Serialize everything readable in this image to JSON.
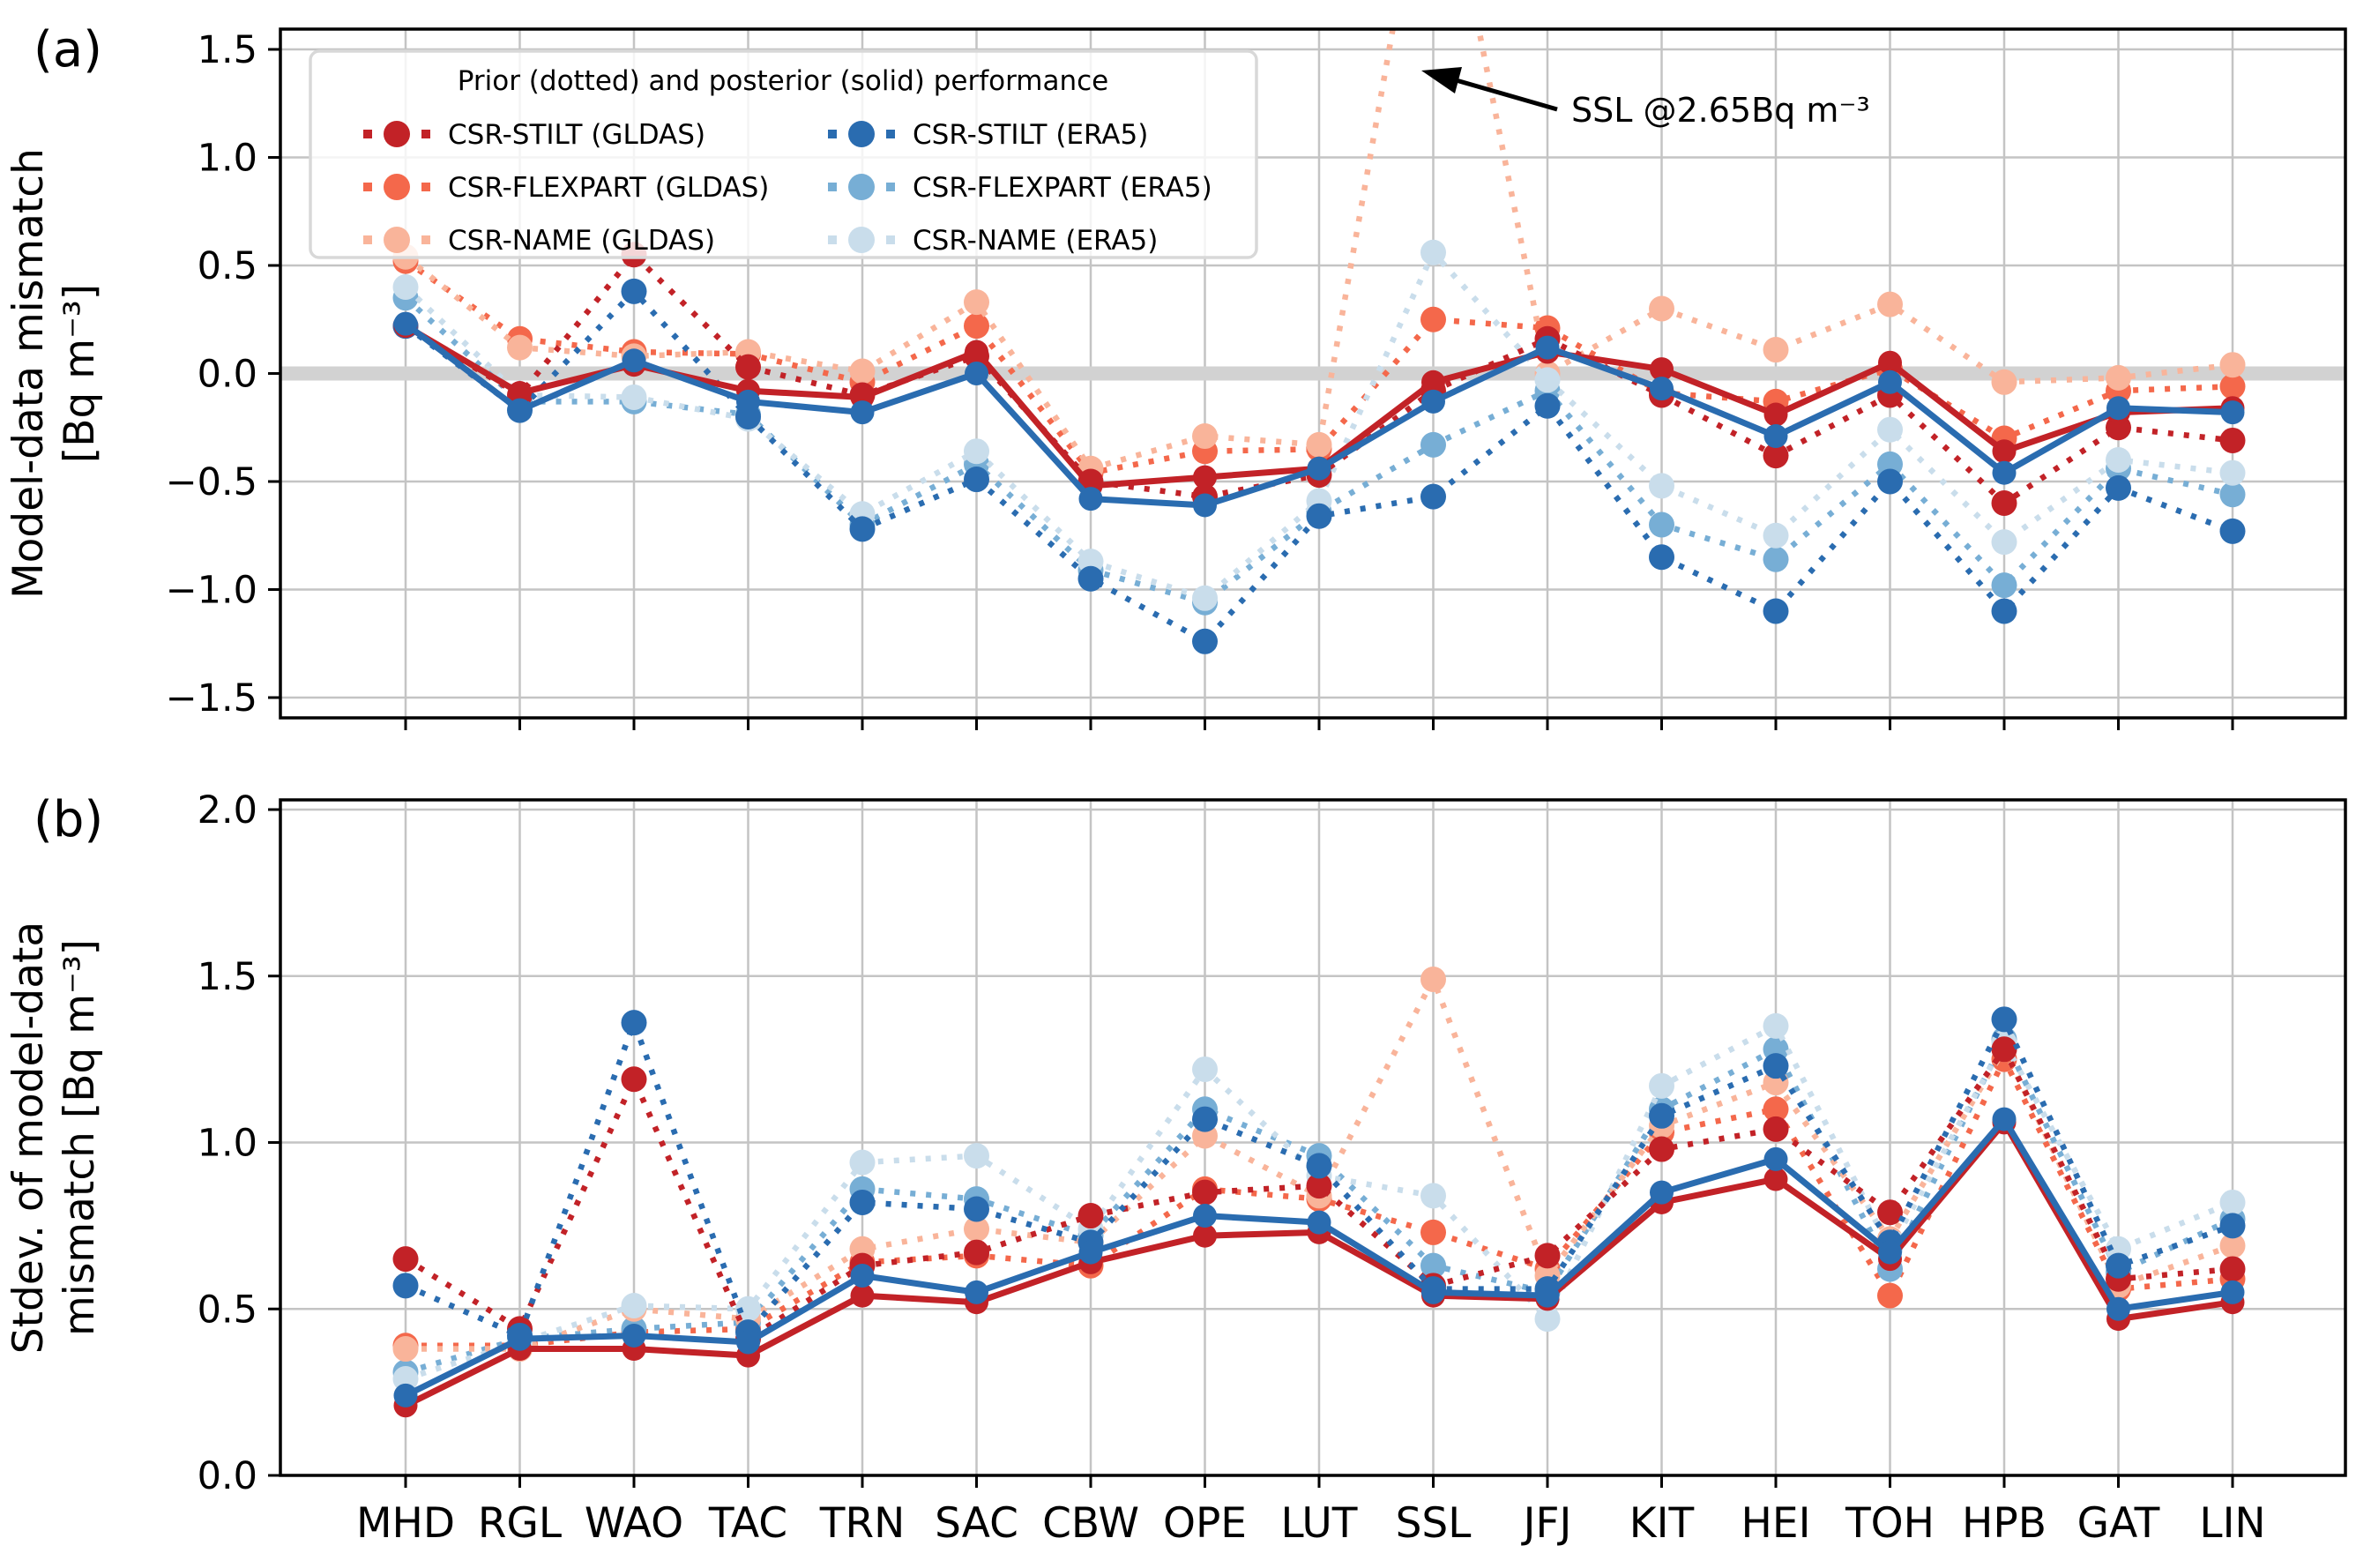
{
  "figure": {
    "panel_a_label": "(a)",
    "panel_b_label": "(b)",
    "legend": {
      "title": "Prior (dotted) and posterior (solid) performance",
      "items": [
        {
          "label": "CSR-STILT (GLDAS)",
          "color": "#c22227"
        },
        {
          "label": "CSR-FLEXPART (GLDAS)",
          "color": "#f4684b"
        },
        {
          "label": "CSR-NAME (GLDAS)",
          "color": "#f9b49a"
        },
        {
          "label": "CSR-STILT (ERA5)",
          "color": "#2a6cb0"
        },
        {
          "label": "CSR-FLEXPART (ERA5)",
          "color": "#77aed5"
        },
        {
          "label": "CSR-NAME (ERA5)",
          "color": "#c9ddeb"
        }
      ]
    },
    "annotation_text": "SSL @2.65Bq m⁻³"
  },
  "chart_data": [
    {
      "type": "line",
      "panel": "a",
      "title": "",
      "ylabel_lines": [
        "Model-data mismatch",
        "[Bq m⁻³]"
      ],
      "ylim": [
        -1.5,
        1.5
      ],
      "grid": true,
      "zero_band": true,
      "ytick_labels": [
        "1.5",
        "1.0",
        "0.5",
        "0.0",
        "−0.5",
        "−1.0",
        "−1.5"
      ],
      "ytick_values": [
        1.5,
        1.0,
        0.5,
        0.0,
        -0.5,
        -1.0,
        -1.5
      ],
      "categories": [
        "MHD",
        "RGL",
        "WAO",
        "TAC",
        "TRN",
        "SAC",
        "CBW",
        "OPE",
        "LUT",
        "SSL",
        "JFJ",
        "KIT",
        "HEI",
        "TOH",
        "HPB",
        "GAT",
        "LIN"
      ],
      "series": [
        {
          "name": "CSR-FLEXPART (GLDAS) prior",
          "style": "dotted",
          "color": "#f4684b",
          "values": [
            0.52,
            0.16,
            0.1,
            0.09,
            -0.04,
            0.22,
            -0.46,
            -0.36,
            -0.35,
            0.25,
            0.21,
            -0.09,
            -0.13,
            0.02,
            -0.3,
            -0.08,
            -0.06
          ]
        },
        {
          "name": "CSR-FLEXPART (ERA5) prior",
          "style": "dotted",
          "color": "#77aed5",
          "values": [
            0.35,
            -0.13,
            -0.13,
            -0.19,
            -0.7,
            -0.42,
            -0.91,
            -1.06,
            -0.64,
            -0.33,
            -0.08,
            -0.7,
            -0.86,
            -0.42,
            -0.98,
            -0.44,
            -0.56
          ]
        },
        {
          "name": "CSR-NAME (GLDAS) prior",
          "style": "dotted",
          "color": "#f9b49a",
          "values": [
            0.54,
            0.12,
            0.08,
            0.1,
            0.01,
            0.33,
            -0.44,
            -0.29,
            -0.33,
            2.65,
            0.0,
            0.3,
            0.11,
            0.32,
            -0.04,
            -0.02,
            0.04
          ]
        },
        {
          "name": "CSR-NAME (ERA5) prior",
          "style": "dotted",
          "color": "#c9ddeb",
          "values": [
            0.4,
            -0.1,
            -0.11,
            -0.21,
            -0.65,
            -0.36,
            -0.87,
            -1.04,
            -0.59,
            0.56,
            -0.03,
            -0.52,
            -0.75,
            -0.26,
            -0.78,
            -0.4,
            -0.46
          ]
        },
        {
          "name": "CSR-STILT (GLDAS) prior",
          "style": "dotted",
          "color": "#c22227",
          "values": [
            0.22,
            -0.1,
            0.55,
            0.03,
            -0.1,
            0.08,
            -0.5,
            -0.57,
            -0.47,
            -0.08,
            0.16,
            -0.1,
            -0.38,
            -0.1,
            -0.6,
            -0.25,
            -0.31
          ]
        },
        {
          "name": "CSR-STILT (ERA5) prior",
          "style": "dotted",
          "color": "#2a6cb0",
          "values": [
            0.22,
            -0.17,
            0.38,
            -0.2,
            -0.72,
            -0.49,
            -0.95,
            -1.24,
            -0.66,
            -0.57,
            -0.15,
            -0.85,
            -1.1,
            -0.5,
            -1.1,
            -0.53,
            -0.73
          ]
        },
        {
          "name": "CSR-STILT (GLDAS) posterior",
          "style": "solid",
          "color": "#c22227",
          "values": [
            0.22,
            -0.09,
            0.04,
            -0.08,
            -0.11,
            0.1,
            -0.52,
            -0.48,
            -0.44,
            -0.04,
            0.1,
            0.02,
            -0.19,
            0.05,
            -0.36,
            -0.18,
            -0.16
          ]
        },
        {
          "name": "CSR-STILT (ERA5) posterior",
          "style": "solid",
          "color": "#2a6cb0",
          "values": [
            0.23,
            -0.17,
            0.06,
            -0.13,
            -0.18,
            0.0,
            -0.58,
            -0.61,
            -0.44,
            -0.13,
            0.12,
            -0.07,
            -0.29,
            -0.04,
            -0.46,
            -0.16,
            -0.18
          ]
        }
      ],
      "annotations": [
        {
          "text": "SSL @2.65Bq m⁻³",
          "station": "SSL",
          "value": 2.65
        }
      ]
    },
    {
      "type": "line",
      "panel": "b",
      "title": "",
      "ylabel_lines": [
        "Stdev. of model-data",
        "mismatch [Bq m⁻³]"
      ],
      "ylim": [
        0.0,
        2.0
      ],
      "grid": true,
      "zero_band": false,
      "ytick_labels": [
        "2.0",
        "1.5",
        "1.0",
        "0.5",
        "0.0"
      ],
      "ytick_values": [
        2.0,
        1.5,
        1.0,
        0.5,
        0.0
      ],
      "categories": [
        "MHD",
        "RGL",
        "WAO",
        "TAC",
        "TRN",
        "SAC",
        "CBW",
        "OPE",
        "LUT",
        "SSL",
        "JFJ",
        "KIT",
        "HEI",
        "TOH",
        "HPB",
        "GAT",
        "LIN"
      ],
      "series": [
        {
          "name": "CSR-FLEXPART (GLDAS) prior",
          "style": "dotted",
          "color": "#f4684b",
          "values": [
            0.39,
            0.39,
            0.43,
            0.44,
            0.64,
            0.66,
            0.63,
            0.86,
            0.83,
            0.73,
            0.62,
            1.03,
            1.1,
            0.54,
            1.25,
            0.56,
            0.59
          ]
        },
        {
          "name": "CSR-FLEXPART (ERA5) prior",
          "style": "dotted",
          "color": "#77aed5",
          "values": [
            0.31,
            0.41,
            0.44,
            0.46,
            0.86,
            0.83,
            0.72,
            1.1,
            0.96,
            0.63,
            0.55,
            1.1,
            1.28,
            0.62,
            1.31,
            0.61,
            0.77
          ]
        },
        {
          "name": "CSR-NAME (GLDAS) prior",
          "style": "dotted",
          "color": "#f9b49a",
          "values": [
            0.38,
            0.38,
            0.5,
            0.47,
            0.68,
            0.74,
            0.7,
            1.02,
            0.84,
            1.49,
            0.6,
            1.05,
            1.18,
            0.71,
            1.28,
            0.57,
            0.69
          ]
        },
        {
          "name": "CSR-NAME (ERA5) prior",
          "style": "dotted",
          "color": "#c9ddeb",
          "values": [
            0.29,
            0.4,
            0.51,
            0.5,
            0.94,
            0.96,
            0.74,
            1.22,
            0.9,
            0.84,
            0.47,
            1.17,
            1.35,
            0.68,
            1.3,
            0.68,
            0.82
          ]
        },
        {
          "name": "CSR-STILT (GLDAS) prior",
          "style": "dotted",
          "color": "#c22227",
          "values": [
            0.65,
            0.44,
            1.19,
            0.41,
            0.63,
            0.67,
            0.78,
            0.85,
            0.87,
            0.57,
            0.66,
            0.98,
            1.04,
            0.79,
            1.28,
            0.59,
            0.62
          ]
        },
        {
          "name": "CSR-STILT (ERA5) prior",
          "style": "dotted",
          "color": "#2a6cb0",
          "values": [
            0.57,
            0.42,
            1.36,
            0.43,
            0.82,
            0.8,
            0.7,
            1.07,
            0.93,
            0.56,
            0.56,
            1.08,
            1.23,
            0.7,
            1.37,
            0.63,
            0.75
          ]
        },
        {
          "name": "CSR-STILT (GLDAS) posterior",
          "style": "solid",
          "color": "#c22227",
          "values": [
            0.21,
            0.38,
            0.38,
            0.36,
            0.54,
            0.52,
            0.64,
            0.72,
            0.73,
            0.54,
            0.53,
            0.82,
            0.89,
            0.65,
            1.06,
            0.47,
            0.52
          ]
        },
        {
          "name": "CSR-STILT (ERA5) posterior",
          "style": "solid",
          "color": "#2a6cb0",
          "values": [
            0.24,
            0.41,
            0.42,
            0.4,
            0.6,
            0.55,
            0.67,
            0.78,
            0.76,
            0.55,
            0.54,
            0.85,
            0.95,
            0.67,
            1.07,
            0.5,
            0.55
          ]
        }
      ]
    }
  ]
}
